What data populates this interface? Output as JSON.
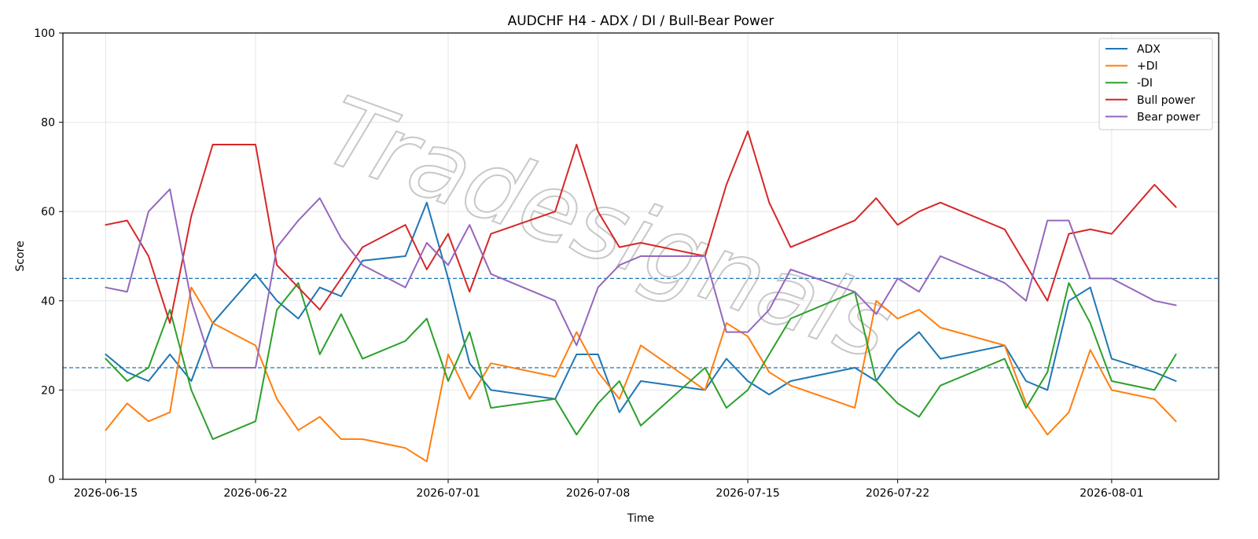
{
  "chart_data": {
    "type": "line",
    "title": "AUDCHF H4 - ADX / DI / Bull-Bear Power",
    "xlabel": "Time",
    "ylabel": "Score",
    "ylim": [
      0,
      100
    ],
    "yticks": [
      0,
      20,
      40,
      60,
      80,
      100
    ],
    "xticks": [
      "2026-06-15",
      "2026-06-22",
      "2026-07-01",
      "2026-07-08",
      "2026-07-15",
      "2026-07-22",
      "2026-08-01"
    ],
    "xlim": [
      "2026-06-13",
      "2026-08-06"
    ],
    "reference_lines": [
      45,
      25
    ],
    "grid": true,
    "legend_position": "top-right",
    "watermark": "Tradesignals",
    "series": [
      {
        "name": "ADX",
        "color": "#1f77b4",
        "x": [
          "2026-06-15",
          "2026-06-16",
          "2026-06-17",
          "2026-06-18",
          "2026-06-19",
          "2026-06-20",
          "2026-06-22",
          "2026-06-23",
          "2026-06-24",
          "2026-06-25",
          "2026-06-26",
          "2026-06-27",
          "2026-06-29",
          "2026-06-30",
          "2026-07-01",
          "2026-07-02",
          "2026-07-03",
          "2026-07-06",
          "2026-07-07",
          "2026-07-08",
          "2026-07-09",
          "2026-07-10",
          "2026-07-13",
          "2026-07-14",
          "2026-07-15",
          "2026-07-16",
          "2026-07-17",
          "2026-07-20",
          "2026-07-21",
          "2026-07-22",
          "2026-07-23",
          "2026-07-24",
          "2026-07-27",
          "2026-07-28",
          "2026-07-29",
          "2026-07-30",
          "2026-07-31",
          "2026-08-01",
          "2026-08-03",
          "2026-08-04"
        ],
        "y": [
          28,
          24,
          22,
          28,
          22,
          35,
          46,
          40,
          36,
          43,
          41,
          49,
          50,
          62,
          45,
          26,
          20,
          18,
          28,
          28,
          15,
          22,
          20,
          27,
          22,
          19,
          22,
          25,
          22,
          29,
          33,
          27,
          30,
          22,
          20,
          40,
          43,
          27,
          24,
          22
        ]
      },
      {
        "name": "+DI",
        "color": "#ff7f0e",
        "x": [
          "2026-06-15",
          "2026-06-16",
          "2026-06-17",
          "2026-06-18",
          "2026-06-19",
          "2026-06-20",
          "2026-06-22",
          "2026-06-23",
          "2026-06-24",
          "2026-06-25",
          "2026-06-26",
          "2026-06-27",
          "2026-06-29",
          "2026-06-30",
          "2026-07-01",
          "2026-07-02",
          "2026-07-03",
          "2026-07-06",
          "2026-07-07",
          "2026-07-08",
          "2026-07-09",
          "2026-07-10",
          "2026-07-13",
          "2026-07-14",
          "2026-07-15",
          "2026-07-16",
          "2026-07-17",
          "2026-07-20",
          "2026-07-21",
          "2026-07-22",
          "2026-07-23",
          "2026-07-24",
          "2026-07-27",
          "2026-07-28",
          "2026-07-29",
          "2026-07-30",
          "2026-07-31",
          "2026-08-01",
          "2026-08-03",
          "2026-08-04"
        ],
        "y": [
          11,
          17,
          13,
          15,
          43,
          35,
          30,
          18,
          11,
          14,
          9,
          9,
          7,
          4,
          28,
          18,
          26,
          23,
          33,
          24,
          18,
          30,
          20,
          35,
          32,
          24,
          21,
          16,
          40,
          36,
          38,
          34,
          30,
          17,
          10,
          15,
          29,
          20,
          18,
          13
        ]
      },
      {
        "name": "-DI",
        "color": "#2ca02c",
        "x": [
          "2026-06-15",
          "2026-06-16",
          "2026-06-17",
          "2026-06-18",
          "2026-06-19",
          "2026-06-20",
          "2026-06-22",
          "2026-06-23",
          "2026-06-24",
          "2026-06-25",
          "2026-06-26",
          "2026-06-27",
          "2026-06-29",
          "2026-06-30",
          "2026-07-01",
          "2026-07-02",
          "2026-07-03",
          "2026-07-06",
          "2026-07-07",
          "2026-07-08",
          "2026-07-09",
          "2026-07-10",
          "2026-07-13",
          "2026-07-14",
          "2026-07-15",
          "2026-07-16",
          "2026-07-17",
          "2026-07-20",
          "2026-07-21",
          "2026-07-22",
          "2026-07-23",
          "2026-07-24",
          "2026-07-27",
          "2026-07-28",
          "2026-07-29",
          "2026-07-30",
          "2026-07-31",
          "2026-08-01",
          "2026-08-03",
          "2026-08-04"
        ],
        "y": [
          27,
          22,
          25,
          38,
          20,
          9,
          13,
          38,
          44,
          28,
          37,
          27,
          31,
          36,
          22,
          33,
          16,
          18,
          10,
          17,
          22,
          12,
          25,
          16,
          20,
          28,
          36,
          42,
          22,
          17,
          14,
          21,
          27,
          16,
          24,
          44,
          35,
          22,
          20,
          28
        ]
      },
      {
        "name": "Bull power",
        "color": "#d62728",
        "x": [
          "2026-06-15",
          "2026-06-16",
          "2026-06-17",
          "2026-06-18",
          "2026-06-19",
          "2026-06-20",
          "2026-06-22",
          "2026-06-23",
          "2026-06-24",
          "2026-06-25",
          "2026-06-26",
          "2026-06-27",
          "2026-06-29",
          "2026-06-30",
          "2026-07-01",
          "2026-07-02",
          "2026-07-03",
          "2026-07-06",
          "2026-07-07",
          "2026-07-08",
          "2026-07-09",
          "2026-07-10",
          "2026-07-13",
          "2026-07-14",
          "2026-07-15",
          "2026-07-16",
          "2026-07-17",
          "2026-07-20",
          "2026-07-21",
          "2026-07-22",
          "2026-07-23",
          "2026-07-24",
          "2026-07-27",
          "2026-07-28",
          "2026-07-29",
          "2026-07-30",
          "2026-07-31",
          "2026-08-01",
          "2026-08-03",
          "2026-08-04"
        ],
        "y": [
          57,
          58,
          50,
          35,
          59,
          75,
          75,
          48,
          43,
          38,
          45,
          52,
          57,
          47,
          55,
          42,
          55,
          60,
          75,
          60,
          52,
          53,
          50,
          66,
          78,
          62,
          52,
          58,
          63,
          57,
          60,
          62,
          56,
          48,
          40,
          55,
          56,
          55,
          66,
          61
        ]
      },
      {
        "name": "Bear power",
        "color": "#9467bd",
        "x": [
          "2026-06-15",
          "2026-06-16",
          "2026-06-17",
          "2026-06-18",
          "2026-06-19",
          "2026-06-20",
          "2026-06-22",
          "2026-06-23",
          "2026-06-24",
          "2026-06-25",
          "2026-06-26",
          "2026-06-27",
          "2026-06-29",
          "2026-06-30",
          "2026-07-01",
          "2026-07-02",
          "2026-07-03",
          "2026-07-06",
          "2026-07-07",
          "2026-07-08",
          "2026-07-09",
          "2026-07-10",
          "2026-07-13",
          "2026-07-14",
          "2026-07-15",
          "2026-07-16",
          "2026-07-17",
          "2026-07-20",
          "2026-07-21",
          "2026-07-22",
          "2026-07-23",
          "2026-07-24",
          "2026-07-27",
          "2026-07-28",
          "2026-07-29",
          "2026-07-30",
          "2026-07-31",
          "2026-08-01",
          "2026-08-03",
          "2026-08-04"
        ],
        "y": [
          43,
          42,
          60,
          65,
          40,
          25,
          25,
          52,
          58,
          63,
          54,
          48,
          43,
          53,
          48,
          57,
          46,
          40,
          30,
          43,
          48,
          50,
          50,
          33,
          33,
          38,
          47,
          42,
          37,
          45,
          42,
          50,
          44,
          40,
          58,
          58,
          45,
          45,
          40,
          39
        ]
      }
    ]
  }
}
